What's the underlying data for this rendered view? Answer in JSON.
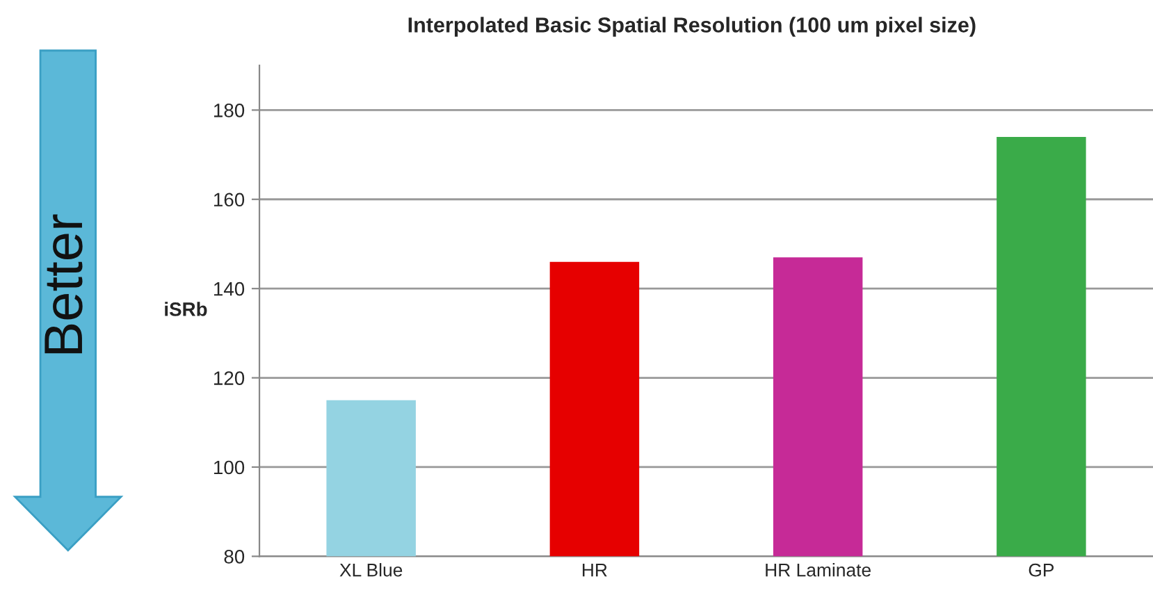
{
  "chart_data": {
    "type": "bar",
    "title": "Interpolated Basic Spatial Resolution (100 um pixel size)",
    "ylabel": "iSRb",
    "categories": [
      "XL Blue",
      "HR",
      "HR Laminate",
      "GP"
    ],
    "values": [
      115,
      146,
      147,
      174
    ],
    "colors": [
      "#94d3e2",
      "#e60000",
      "#c62a97",
      "#3aab49"
    ],
    "ylim": [
      80,
      190
    ],
    "yticks": [
      80,
      100,
      120,
      140,
      160,
      180
    ],
    "grid": "y",
    "annotations": [
      "Better"
    ]
  }
}
